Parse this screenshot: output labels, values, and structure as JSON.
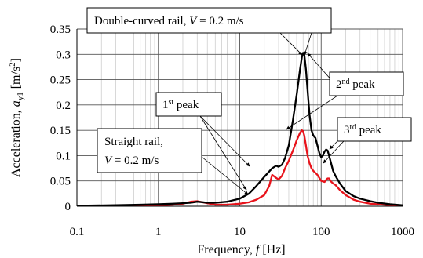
{
  "chart_data": {
    "type": "line",
    "xscale": "log",
    "xlim": [
      0.1,
      1000
    ],
    "ylim": [
      0,
      0.35
    ],
    "grid": true,
    "xlabel": {
      "prefix": "Frequency, ",
      "var": "f",
      "unit": " [Hz]"
    },
    "ylabel": {
      "prefix": "Acceleration, ",
      "var": "a",
      "sub": "y1",
      "unit": " [m/s",
      "sup": "2",
      "close": "]"
    },
    "x_ticks": [
      {
        "value": 0.1,
        "label": "0.1"
      },
      {
        "value": 1,
        "label": "1"
      },
      {
        "value": 10,
        "label": "10"
      },
      {
        "value": 100,
        "label": "100"
      },
      {
        "value": 1000,
        "label": "1000"
      }
    ],
    "y_ticks": [
      {
        "value": 0,
        "label": "0"
      },
      {
        "value": 0.05,
        "label": "0.05"
      },
      {
        "value": 0.1,
        "label": "0.1"
      },
      {
        "value": 0.15,
        "label": "0.15"
      },
      {
        "value": 0.2,
        "label": "0.2"
      },
      {
        "value": 0.25,
        "label": "0.25"
      },
      {
        "value": 0.3,
        "label": "0.3"
      },
      {
        "value": 0.35,
        "label": "0.35"
      }
    ],
    "series": [
      {
        "color": "#000000",
        "x": [
          0.1,
          0.3,
          0.6,
          1,
          1.5,
          2,
          2.5,
          3,
          3.5,
          4,
          5,
          7,
          10,
          13,
          16,
          20,
          25,
          28,
          30,
          33,
          36,
          40,
          45,
          50,
          55,
          58,
          60,
          62,
          65,
          68,
          72,
          76,
          80,
          85,
          90,
          95,
          100,
          105,
          110,
          115,
          120,
          125,
          130,
          140,
          150,
          170,
          200,
          250,
          300,
          400,
          500,
          700,
          1000
        ],
        "y": [
          0.001,
          0.002,
          0.003,
          0.004,
          0.005,
          0.006,
          0.007,
          0.009,
          0.008,
          0.007,
          0.007,
          0.009,
          0.015,
          0.025,
          0.04,
          0.058,
          0.075,
          0.08,
          0.078,
          0.082,
          0.095,
          0.12,
          0.17,
          0.22,
          0.27,
          0.295,
          0.303,
          0.3,
          0.27,
          0.23,
          0.18,
          0.15,
          0.14,
          0.135,
          0.12,
          0.105,
          0.097,
          0.1,
          0.108,
          0.112,
          0.11,
          0.1,
          0.09,
          0.07,
          0.06,
          0.045,
          0.03,
          0.02,
          0.015,
          0.01,
          0.007,
          0.004,
          0.002
        ]
      },
      {
        "color": "#e8131b",
        "x": [
          0.1,
          0.3,
          0.6,
          1,
          1.5,
          2,
          2.5,
          3,
          4,
          5,
          7,
          10,
          13,
          16,
          20,
          23,
          25,
          28,
          30,
          33,
          36,
          40,
          45,
          50,
          55,
          58,
          60,
          62,
          65,
          68,
          72,
          76,
          80,
          90,
          100,
          110,
          115,
          120,
          125,
          130,
          140,
          150,
          170,
          200,
          250,
          300,
          400,
          500,
          700,
          1000
        ],
        "y": [
          0.001,
          0.001,
          0.002,
          0.002,
          0.003,
          0.005,
          0.009,
          0.01,
          0.006,
          0.003,
          0.003,
          0.005,
          0.008,
          0.013,
          0.022,
          0.04,
          0.062,
          0.056,
          0.053,
          0.06,
          0.075,
          0.09,
          0.11,
          0.13,
          0.145,
          0.15,
          0.148,
          0.14,
          0.12,
          0.1,
          0.085,
          0.075,
          0.07,
          0.062,
          0.05,
          0.048,
          0.052,
          0.055,
          0.055,
          0.05,
          0.045,
          0.042,
          0.032,
          0.022,
          0.013,
          0.009,
          0.005,
          0.004,
          0.002,
          0.001
        ]
      }
    ],
    "annotations": [
      {
        "id": "double",
        "parts": [
          [
            "Double-curved rail, ",
            "n"
          ],
          [
            "V",
            "i"
          ],
          [
            " = 0.2 m/s",
            "n"
          ]
        ]
      },
      {
        "id": "peak2",
        "parts": [
          [
            "2",
            "n"
          ],
          [
            "nd",
            "sup"
          ],
          [
            " peak",
            "n"
          ]
        ]
      },
      {
        "id": "peak1",
        "parts": [
          [
            "1",
            "n"
          ],
          [
            "st",
            "sup"
          ],
          [
            " peak",
            "n"
          ]
        ]
      },
      {
        "id": "peak3",
        "parts": [
          [
            "3",
            "n"
          ],
          [
            "rd",
            "sup"
          ],
          [
            " peak",
            "n"
          ]
        ]
      },
      {
        "id": "straight",
        "lines": [
          [
            [
              "Straight rail,",
              "n"
            ]
          ],
          [
            [
              "V",
              "i"
            ],
            [
              " = 0.2 m/s",
              "n"
            ]
          ]
        ]
      }
    ]
  }
}
